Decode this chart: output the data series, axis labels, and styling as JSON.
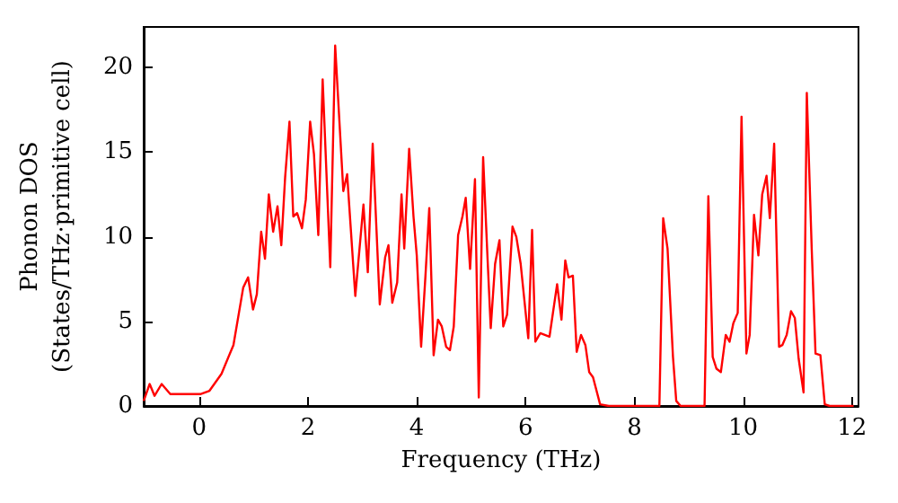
{
  "chart_data": {
    "type": "line",
    "xlabel": "Frequency (THz)",
    "ylabel": "Phonon DOS\n(States/THz·primitive cell)",
    "xlim": [
      -1.02,
      12.12
    ],
    "ylim": [
      0,
      22.4
    ],
    "xticks": [
      0,
      2,
      4,
      6,
      8,
      10,
      12
    ],
    "yticks": [
      0,
      5,
      10,
      15,
      20
    ],
    "grid": false,
    "marker": "none",
    "line_style": "solid",
    "series": [
      {
        "color": "#ff0000",
        "x": [
          -1.02,
          -0.91,
          -0.82,
          -0.69,
          -0.53,
          0.02,
          0.19,
          0.41,
          0.63,
          0.81,
          0.9,
          0.99,
          1.06,
          1.14,
          1.21,
          1.28,
          1.36,
          1.44,
          1.51,
          1.58,
          1.66,
          1.73,
          1.8,
          1.89,
          1.96,
          2.04,
          2.11,
          2.19,
          2.27,
          2.41,
          2.5,
          2.65,
          2.72,
          2.87,
          3.02,
          3.1,
          3.19,
          3.32,
          3.42,
          3.48,
          3.55,
          3.64,
          3.72,
          3.77,
          3.86,
          3.94,
          4.0,
          4.08,
          4.16,
          4.23,
          4.31,
          4.39,
          4.46,
          4.54,
          4.61,
          4.68,
          4.76,
          4.84,
          4.9,
          4.98,
          5.07,
          5.14,
          5.22,
          5.3,
          5.36,
          5.44,
          5.52,
          5.59,
          5.66,
          5.76,
          5.83,
          5.91,
          6.05,
          6.12,
          6.18,
          6.27,
          6.44,
          6.58,
          6.66,
          6.73,
          6.79,
          6.87,
          6.94,
          7.02,
          7.1,
          7.17,
          7.24,
          7.37,
          7.53,
          8.46,
          8.53,
          8.61,
          8.71,
          8.77,
          8.85,
          9.29,
          9.36,
          9.44,
          9.51,
          9.59,
          9.68,
          9.75,
          9.82,
          9.9,
          9.97,
          10.06,
          10.12,
          10.2,
          10.28,
          10.35,
          10.43,
          10.49,
          10.57,
          10.66,
          10.72,
          10.8,
          10.88,
          10.95,
          11.02,
          11.11,
          11.17,
          11.26,
          11.33,
          11.42,
          11.5,
          11.59,
          12.03
        ],
        "values": [
          0.3,
          1.3,
          0.6,
          1.3,
          0.7,
          0.7,
          0.9,
          1.9,
          3.6,
          7.0,
          7.6,
          5.7,
          6.6,
          10.3,
          8.7,
          12.5,
          10.3,
          11.8,
          9.5,
          13.5,
          16.8,
          11.2,
          11.4,
          10.5,
          12.2,
          16.8,
          14.9,
          10.1,
          19.3,
          8.2,
          21.3,
          12.7,
          13.7,
          6.5,
          11.9,
          7.9,
          15.5,
          6.0,
          8.8,
          9.5,
          6.1,
          7.3,
          12.5,
          9.3,
          15.2,
          11.2,
          8.9,
          3.5,
          7.7,
          11.7,
          3.0,
          5.1,
          4.7,
          3.5,
          3.3,
          4.7,
          10.1,
          11.2,
          12.3,
          8.1,
          13.4,
          0.5,
          14.7,
          8.8,
          4.6,
          8.4,
          9.8,
          4.7,
          5.4,
          10.6,
          10.0,
          8.4,
          4.0,
          10.4,
          3.8,
          4.3,
          4.1,
          7.2,
          5.1,
          8.6,
          7.6,
          7.7,
          3.2,
          4.2,
          3.6,
          2.0,
          1.7,
          0.1,
          0,
          0,
          11.1,
          9.3,
          2.9,
          0.3,
          0,
          0,
          12.4,
          2.9,
          2.2,
          2.0,
          4.2,
          3.8,
          4.9,
          5.5,
          17.1,
          3.1,
          4.2,
          11.3,
          8.9,
          12.5,
          13.6,
          11.1,
          15.5,
          3.5,
          3.6,
          4.2,
          5.6,
          5.2,
          2.8,
          0.8,
          18.5,
          9.3,
          3.1,
          3.0,
          0.1,
          0,
          0
        ]
      }
    ]
  }
}
